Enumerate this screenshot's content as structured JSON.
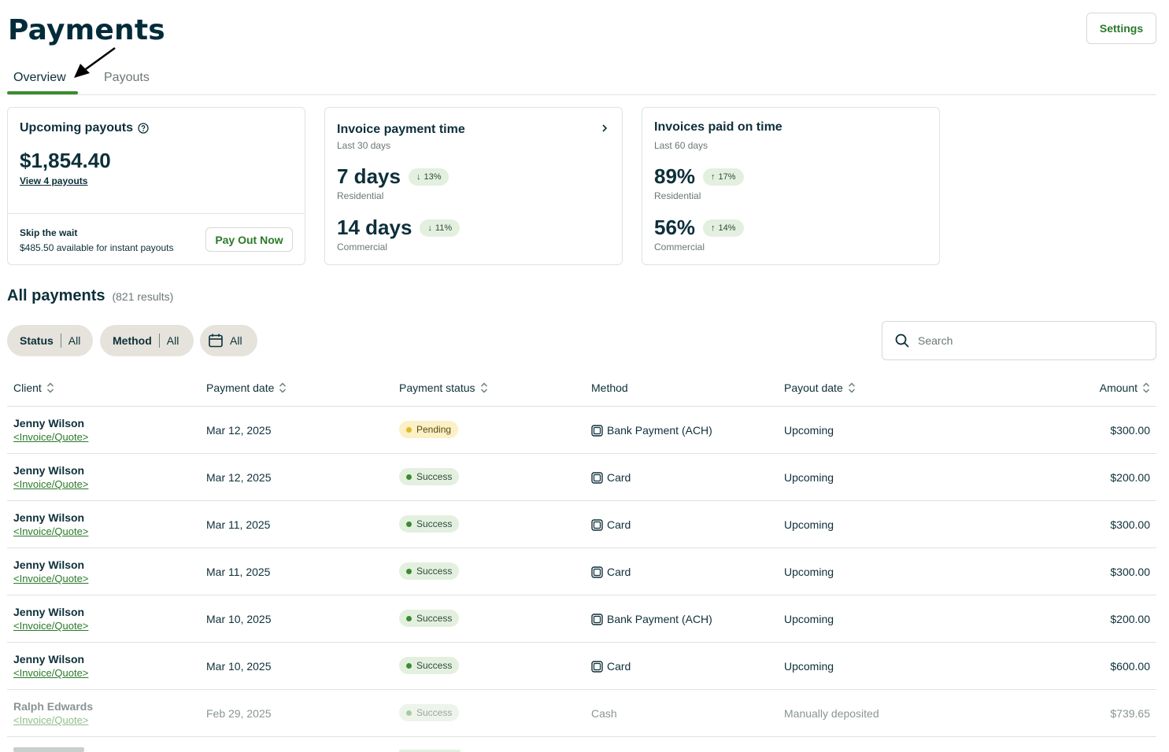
{
  "page": {
    "title": "Payments",
    "settings_label": "Settings"
  },
  "tabs": [
    {
      "label": "Overview",
      "active": true
    },
    {
      "label": "Payouts",
      "active": false
    }
  ],
  "upcoming": {
    "title": "Upcoming payouts",
    "amount": "$1,854.40",
    "link": "View 4 payouts",
    "skip_title": "Skip the wait",
    "skip_sub": "$485.50 available for instant payouts",
    "button": "Pay Out Now"
  },
  "invoice_time": {
    "title": "Invoice payment time",
    "period": "Last 30 days",
    "m1_value": "7 days",
    "m1_change": "13%",
    "m1_label": "Residential",
    "m2_value": "14 days",
    "m2_change": "11%",
    "m2_label": "Commercial"
  },
  "on_time": {
    "title": "Invoices paid on time",
    "period": "Last 60 days",
    "m1_value": "89%",
    "m1_change": "17%",
    "m1_label": "Residential",
    "m2_value": "56%",
    "m2_change": "14%",
    "m2_label": "Commercial"
  },
  "all_payments": {
    "title": "All payments",
    "count": "(821 results)",
    "filters": {
      "status_label": "Status",
      "status_value": "All",
      "method_label": "Method",
      "method_value": "All",
      "date_value": "All"
    },
    "search_placeholder": "Search",
    "columns": {
      "client": "Client",
      "payment_date": "Payment date",
      "payment_status": "Payment status",
      "method": "Method",
      "payout_date": "Payout date",
      "amount": "Amount"
    },
    "rows": [
      {
        "client": "Jenny Wilson",
        "link": "<Invoice/Quote>",
        "date": "Mar 12, 2025",
        "status": "Pending",
        "method": "Bank Payment (ACH)",
        "payout": "Upcoming",
        "amount": "$300.00"
      },
      {
        "client": "Jenny Wilson",
        "link": "<Invoice/Quote>",
        "date": "Mar 12, 2025",
        "status": "Success",
        "method": "Card",
        "payout": "Upcoming",
        "amount": "$200.00"
      },
      {
        "client": "Jenny Wilson",
        "link": "<Invoice/Quote>",
        "date": "Mar 11, 2025",
        "status": "Success",
        "method": "Card",
        "payout": "Upcoming",
        "amount": "$300.00"
      },
      {
        "client": "Jenny Wilson",
        "link": "<Invoice/Quote>",
        "date": "Mar 11, 2025",
        "status": "Success",
        "method": "Card",
        "payout": "Upcoming",
        "amount": "$300.00"
      },
      {
        "client": "Jenny Wilson",
        "link": "<Invoice/Quote>",
        "date": "Mar 10, 2025",
        "status": "Success",
        "method": "Bank Payment (ACH)",
        "payout": "Upcoming",
        "amount": "$200.00"
      },
      {
        "client": "Jenny Wilson",
        "link": "<Invoice/Quote>",
        "date": "Mar 10, 2025",
        "status": "Success",
        "method": "Card",
        "payout": "Upcoming",
        "amount": "$600.00"
      },
      {
        "client": "Ralph Edwards",
        "link": "<Invoice/Quote>",
        "date": "Feb 29, 2025",
        "status": "Success",
        "method": "Cash",
        "payout": "Manually deposited",
        "amount": "$739.65"
      }
    ]
  },
  "colors": {
    "accent": "#3a8c2e",
    "text": "#0d2f3a",
    "pill_bg": "#e4f0df",
    "pending_bg": "#fbf0c6",
    "filter_bg": "#e5e3db"
  }
}
